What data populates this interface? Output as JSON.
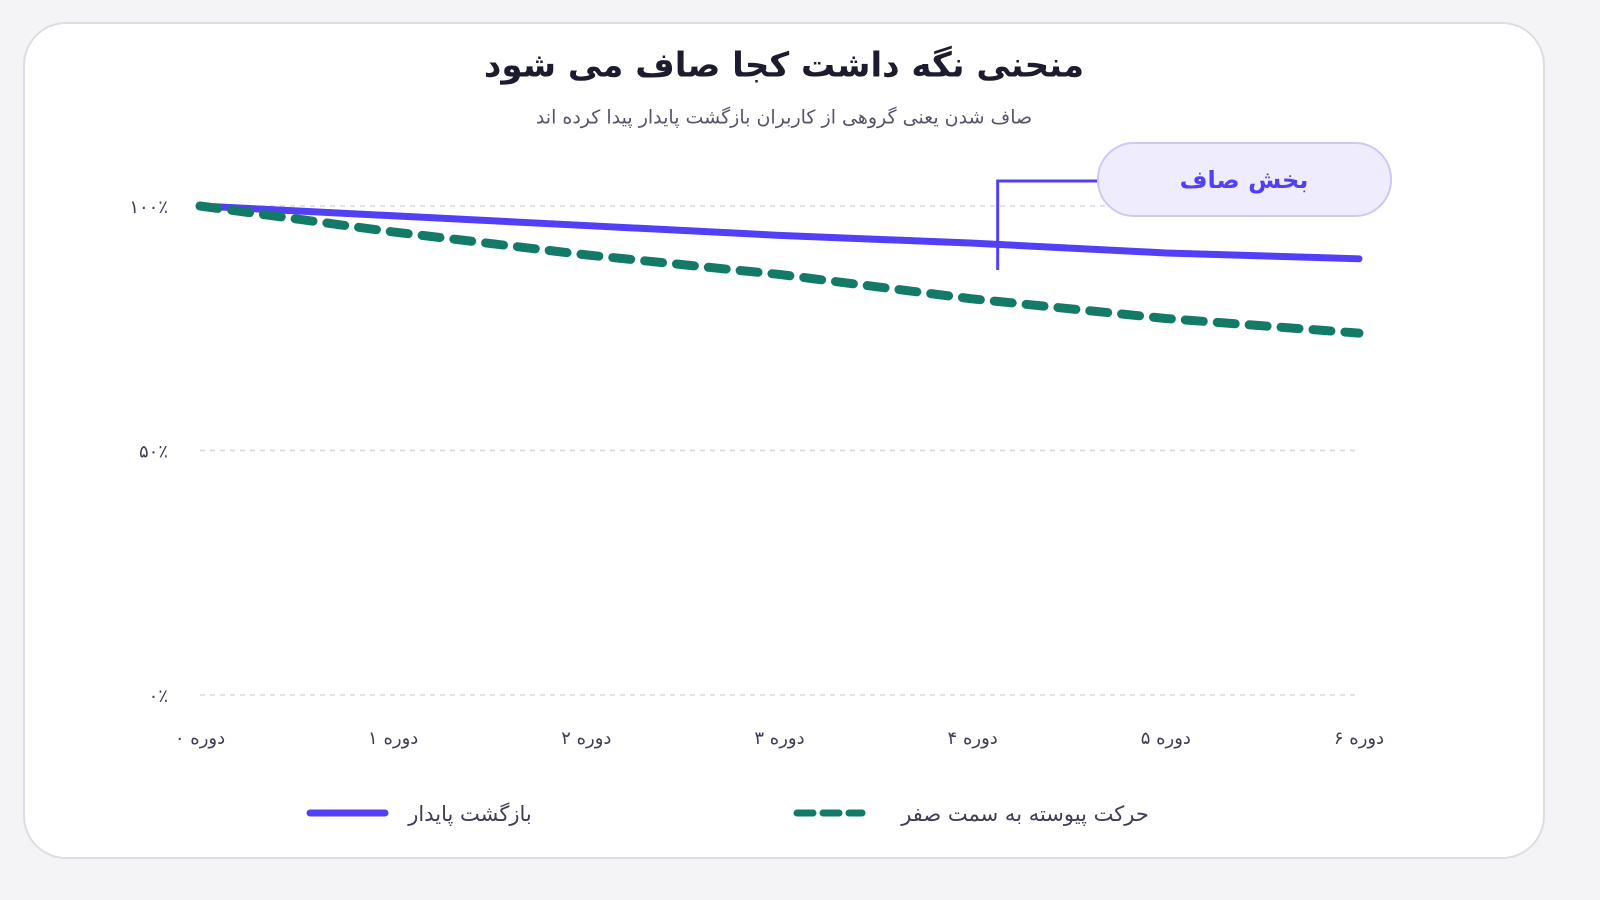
{
  "chart_data": {
    "type": "line",
    "title": "منحنی نگه داشت کجا صاف می شود",
    "subtitle": "صاف شدن یعنی گروهی از کاربران بازگشت پایدار پیدا کرده اند",
    "annotation": "بخش صاف",
    "categories": [
      "دوره ۰",
      "دوره ۱",
      "دوره ۲",
      "دوره ۳",
      "دوره ۴",
      "دوره ۵",
      "دوره ۶"
    ],
    "series": [
      {
        "name": "بازگشت پایدار",
        "color": "#5140f5",
        "dashed": false,
        "values": [
          100,
          98,
          96,
          94,
          92.4,
          90.4,
          89.2
        ]
      },
      {
        "name": "حرکت پیوسته به سمت صفر",
        "color": "#137a68",
        "dashed": true,
        "values": [
          100,
          94.7,
          90,
          86,
          81,
          77,
          74
        ]
      }
    ],
    "ylim": [
      0,
      100
    ],
    "yticks": [
      {
        "value": 0,
        "label": "۰٪"
      },
      {
        "value": 50,
        "label": "۵۰٪"
      },
      {
        "value": 100,
        "label": "۱۰۰٪"
      }
    ],
    "grid": true,
    "legend": "bottom"
  }
}
